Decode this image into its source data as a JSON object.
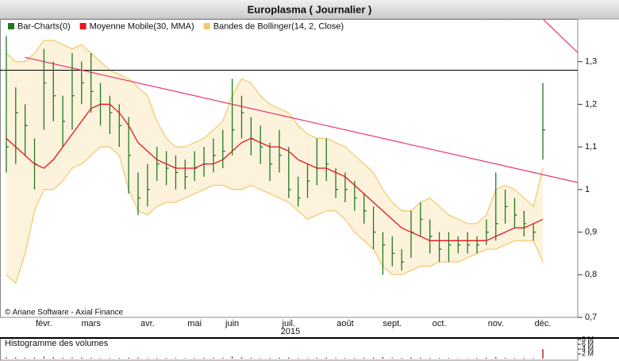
{
  "chart_data": {
    "type": "stock",
    "title": "Europlasma  ( Journalier )",
    "credit": "© Ariane Software - Axial Finance",
    "x_group_label": "2015",
    "categories": [
      null,
      null,
      null,
      null,
      "févr.",
      null,
      null,
      null,
      null,
      "mars",
      null,
      null,
      null,
      null,
      null,
      "avr.",
      null,
      null,
      null,
      null,
      "mai",
      null,
      null,
      null,
      "juin",
      null,
      null,
      null,
      null,
      null,
      "juil.",
      null,
      null,
      null,
      null,
      null,
      "août",
      null,
      null,
      null,
      null,
      "sept.",
      null,
      null,
      null,
      null,
      "oct.",
      null,
      null,
      null,
      null,
      null,
      "nov.",
      null,
      null,
      null,
      null,
      "déc."
    ],
    "ylim": [
      0.7,
      1.4
    ],
    "yticks": [
      {
        "value": 0.7,
        "label": "0,7"
      },
      {
        "value": 0.8,
        "label": "0,8"
      },
      {
        "value": 0.9,
        "label": "0,9"
      },
      1,
      {
        "value": 1.1,
        "label": "1,1"
      },
      {
        "value": 1.2,
        "label": "1,2"
      },
      {
        "value": 1.3,
        "label": "1,3"
      }
    ],
    "series": [
      {
        "name": "Bar-Charts(0)",
        "color": "#1f7a1f",
        "high": [
          1.36,
          1.24,
          1.2,
          1.12,
          1.33,
          1.3,
          1.22,
          1.32,
          1.3,
          1.32,
          1.25,
          1.22,
          1.2,
          1.17,
          1.04,
          1.06,
          1.1,
          1.09,
          1.08,
          1.07,
          1.09,
          1.1,
          1.12,
          1.14,
          1.26,
          1.22,
          1.17,
          1.15,
          1.11,
          1.14,
          1.1,
          1.03,
          1.06,
          1.12,
          1.12,
          1.05,
          1.04,
          1.02,
          0.99,
          0.96,
          0.9,
          0.89,
          0.86,
          0.95,
          0.97,
          0.93,
          0.9,
          0.9,
          0.89,
          0.9,
          0.89,
          0.93,
          1.04,
          1.0,
          0.98,
          0.95,
          0.92,
          1.25
        ],
        "low": [
          1.04,
          1.06,
          1.08,
          1.0,
          1.14,
          1.16,
          1.1,
          1.14,
          1.2,
          1.18,
          1.15,
          1.13,
          1.1,
          0.99,
          0.94,
          0.96,
          1.02,
          1.01,
          1.0,
          1.0,
          1.02,
          1.03,
          1.04,
          1.05,
          1.08,
          1.12,
          1.08,
          1.06,
          1.02,
          1.04,
          0.98,
          0.96,
          0.98,
          1.01,
          1.02,
          0.98,
          0.97,
          0.95,
          0.92,
          0.86,
          0.8,
          0.82,
          0.81,
          0.84,
          0.89,
          0.85,
          0.83,
          0.83,
          0.85,
          0.85,
          0.85,
          0.87,
          0.88,
          0.92,
          0.91,
          0.89,
          0.88,
          1.07
        ],
        "close": [
          1.1,
          1.18,
          1.15,
          1.06,
          1.25,
          1.22,
          1.16,
          1.22,
          1.25,
          1.23,
          1.2,
          1.18,
          1.15,
          1.08,
          0.98,
          1.0,
          1.06,
          1.05,
          1.04,
          1.03,
          1.05,
          1.06,
          1.08,
          1.09,
          1.14,
          1.18,
          1.12,
          1.1,
          1.06,
          1.08,
          1.0,
          0.98,
          1.02,
          1.05,
          1.06,
          1.0,
          1.0,
          0.98,
          0.95,
          0.9,
          0.87,
          0.85,
          0.83,
          0.9,
          0.93,
          0.89,
          0.86,
          0.87,
          0.87,
          0.87,
          0.87,
          0.9,
          0.92,
          0.96,
          0.94,
          0.92,
          0.9,
          1.14
        ]
      },
      {
        "name": "Moyenne Mobile(30, MMA)",
        "color": "#e8141c",
        "values": [
          1.12,
          1.1,
          1.08,
          1.06,
          1.05,
          1.07,
          1.1,
          1.13,
          1.16,
          1.19,
          1.2,
          1.2,
          1.18,
          1.15,
          1.11,
          1.09,
          1.07,
          1.06,
          1.05,
          1.05,
          1.05,
          1.06,
          1.06,
          1.07,
          1.09,
          1.11,
          1.12,
          1.11,
          1.1,
          1.1,
          1.09,
          1.07,
          1.06,
          1.05,
          1.05,
          1.04,
          1.03,
          1.01,
          0.99,
          0.97,
          0.95,
          0.93,
          0.91,
          0.9,
          0.89,
          0.88,
          0.88,
          0.88,
          0.88,
          0.88,
          0.88,
          0.88,
          0.89,
          0.9,
          0.91,
          0.91,
          0.92,
          0.93
        ]
      },
      {
        "name": "Bandes de Bollinger(14, 2, Close)",
        "color": "#f2c76a",
        "upper": [
          1.32,
          1.3,
          1.3,
          1.32,
          1.35,
          1.35,
          1.34,
          1.33,
          1.34,
          1.32,
          1.3,
          1.28,
          1.27,
          1.26,
          1.24,
          1.22,
          1.16,
          1.12,
          1.1,
          1.1,
          1.11,
          1.12,
          1.14,
          1.16,
          1.22,
          1.26,
          1.25,
          1.22,
          1.2,
          1.19,
          1.18,
          1.15,
          1.13,
          1.12,
          1.12,
          1.11,
          1.1,
          1.08,
          1.06,
          1.04,
          1.0,
          0.97,
          0.95,
          0.95,
          0.97,
          0.98,
          0.96,
          0.94,
          0.93,
          0.92,
          0.92,
          0.94,
          1.0,
          1.01,
          1.0,
          0.98,
          0.96,
          1.05
        ],
        "lower": [
          0.8,
          0.78,
          0.85,
          0.95,
          1.0,
          1.0,
          1.02,
          1.05,
          1.06,
          1.08,
          1.1,
          1.1,
          1.08,
          1.0,
          0.95,
          0.94,
          0.96,
          0.97,
          0.97,
          0.98,
          0.99,
          1.0,
          1.01,
          1.01,
          1.0,
          1.0,
          1.01,
          1.0,
          0.99,
          0.98,
          0.97,
          0.95,
          0.93,
          0.94,
          0.95,
          0.95,
          0.93,
          0.9,
          0.88,
          0.86,
          0.82,
          0.8,
          0.8,
          0.81,
          0.82,
          0.82,
          0.83,
          0.83,
          0.83,
          0.84,
          0.85,
          0.86,
          0.86,
          0.87,
          0.88,
          0.88,
          0.88,
          0.83
        ]
      }
    ],
    "hline": {
      "value": 1.28,
      "color": "#000000"
    },
    "trendlines": [
      {
        "color": "#e8336a",
        "points": [
          [
            2,
            1.31
          ],
          [
            61,
            1.015
          ]
        ]
      },
      {
        "color": "#e8336a",
        "points": [
          [
            57,
            1.4
          ],
          [
            61,
            1.315
          ]
        ]
      }
    ],
    "volume": {
      "label": "Histogramme des volumes",
      "color": "#c0282d",
      "values": [
        0.6,
        0.5,
        0.4,
        0.5,
        0.8,
        0.6,
        0.4,
        0.5,
        0.5,
        0.4,
        0.3,
        0.3,
        0.3,
        0.4,
        0.5,
        0.3,
        0.3,
        0.3,
        0.3,
        0.2,
        0.3,
        0.3,
        0.4,
        0.4,
        0.9,
        0.6,
        0.4,
        0.3,
        0.3,
        0.4,
        0.5,
        0.3,
        0.3,
        0.4,
        0.5,
        0.3,
        0.3,
        0.3,
        0.4,
        0.5,
        0.7,
        0.4,
        0.3,
        0.5,
        0.4,
        0.3,
        0.3,
        0.3,
        0.2,
        0.2,
        0.3,
        0.4,
        0.6,
        0.4,
        0.3,
        0.3,
        0.3,
        4.0
      ],
      "ylim": [
        0,
        8
      ],
      "yticks": [
        {
          "value": 8,
          "label": "8 M"
        },
        {
          "value": 6,
          "label": "6 M"
        },
        {
          "value": 4,
          "label": "4 M"
        },
        {
          "value": 2,
          "label": "2 M"
        }
      ]
    }
  }
}
